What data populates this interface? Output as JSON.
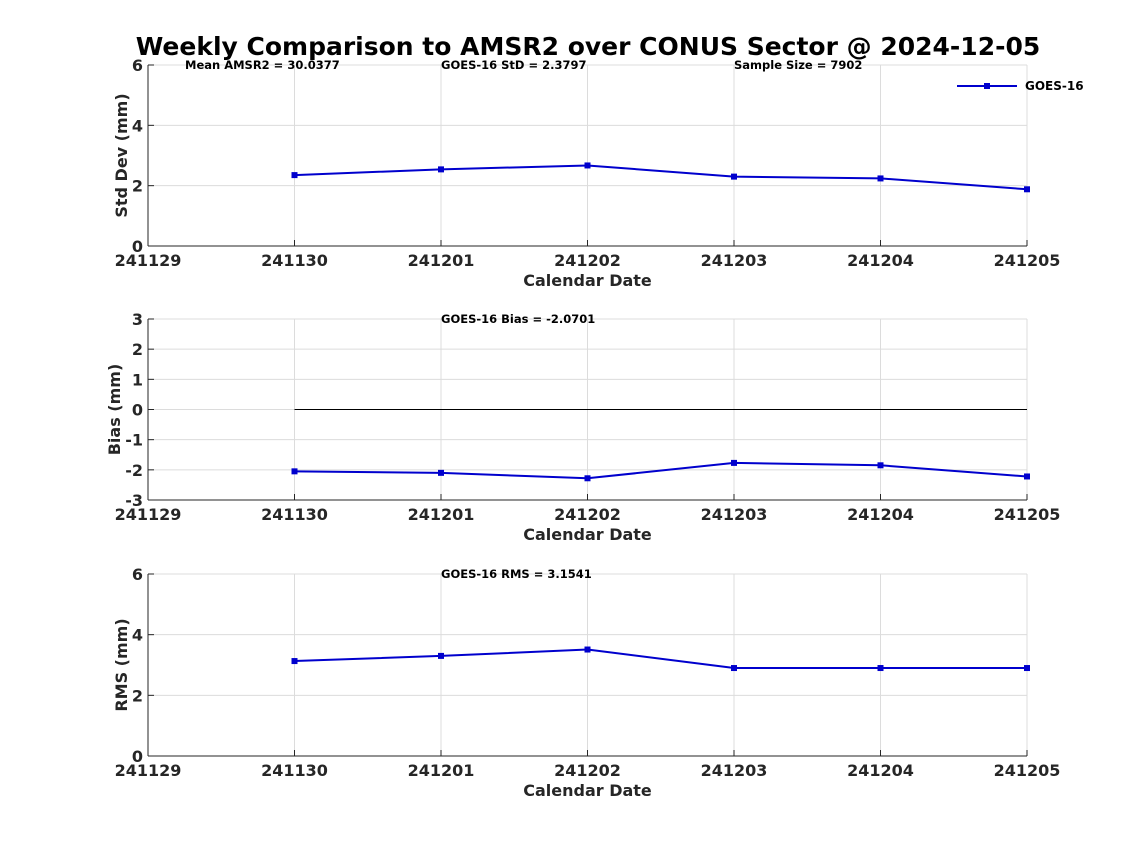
{
  "figure": {
    "title": "Weekly Comparison to AMSR2 over CONUS Sector @ 2024-12-05"
  },
  "chart_data": [
    {
      "type": "line",
      "ylabel": "Std Dev (mm)",
      "xlabel": "Calendar Date",
      "x_ticks": [
        "241129",
        "241130",
        "241201",
        "241202",
        "241203",
        "241204",
        "241205"
      ],
      "ylim": [
        0,
        6
      ],
      "y_ticks": [
        "0",
        "2",
        "4",
        "6"
      ],
      "grid": true,
      "legend": {
        "placement": "top-right",
        "entries": [
          "GOES-16"
        ]
      },
      "annotations": [
        "Mean AMSR2 = 30.0377",
        "GOES-16 StD = 2.3797",
        "Sample Size = 7902"
      ],
      "series": [
        {
          "name": "GOES-16",
          "x": [
            "241130",
            "241201",
            "241202",
            "241203",
            "241204",
            "241205"
          ],
          "values": [
            2.35,
            2.54,
            2.67,
            2.3,
            2.24,
            1.88
          ],
          "color": "#0000cd"
        }
      ]
    },
    {
      "type": "line",
      "ylabel": "Bias (mm)",
      "xlabel": "Calendar Date",
      "x_ticks": [
        "241129",
        "241130",
        "241201",
        "241202",
        "241203",
        "241204",
        "241205"
      ],
      "ylim": [
        -3,
        3
      ],
      "y_ticks": [
        "-3",
        "-2",
        "-1",
        "0",
        "1",
        "2",
        "3"
      ],
      "grid": true,
      "annotations": [
        "GOES-16 Bias  = -2.0701"
      ],
      "reference_line": 0,
      "series": [
        {
          "name": "GOES-16",
          "x": [
            "241130",
            "241201",
            "241202",
            "241203",
            "241204",
            "241205"
          ],
          "values": [
            -2.05,
            -2.1,
            -2.28,
            -1.77,
            -1.85,
            -2.22
          ],
          "color": "#0000cd"
        }
      ]
    },
    {
      "type": "line",
      "ylabel": "RMS (mm)",
      "xlabel": "Calendar Date",
      "x_ticks": [
        "241129",
        "241130",
        "241201",
        "241202",
        "241203",
        "241204",
        "241205"
      ],
      "ylim": [
        0,
        6
      ],
      "y_ticks": [
        "0",
        "2",
        "4",
        "6"
      ],
      "grid": true,
      "annotations": [
        "GOES-16 RMS = 3.1541"
      ],
      "series": [
        {
          "name": "GOES-16",
          "x": [
            "241130",
            "241201",
            "241202",
            "241203",
            "241204",
            "241205"
          ],
          "values": [
            3.13,
            3.3,
            3.51,
            2.9,
            2.9,
            2.9
          ],
          "color": "#0000cd"
        }
      ]
    }
  ]
}
